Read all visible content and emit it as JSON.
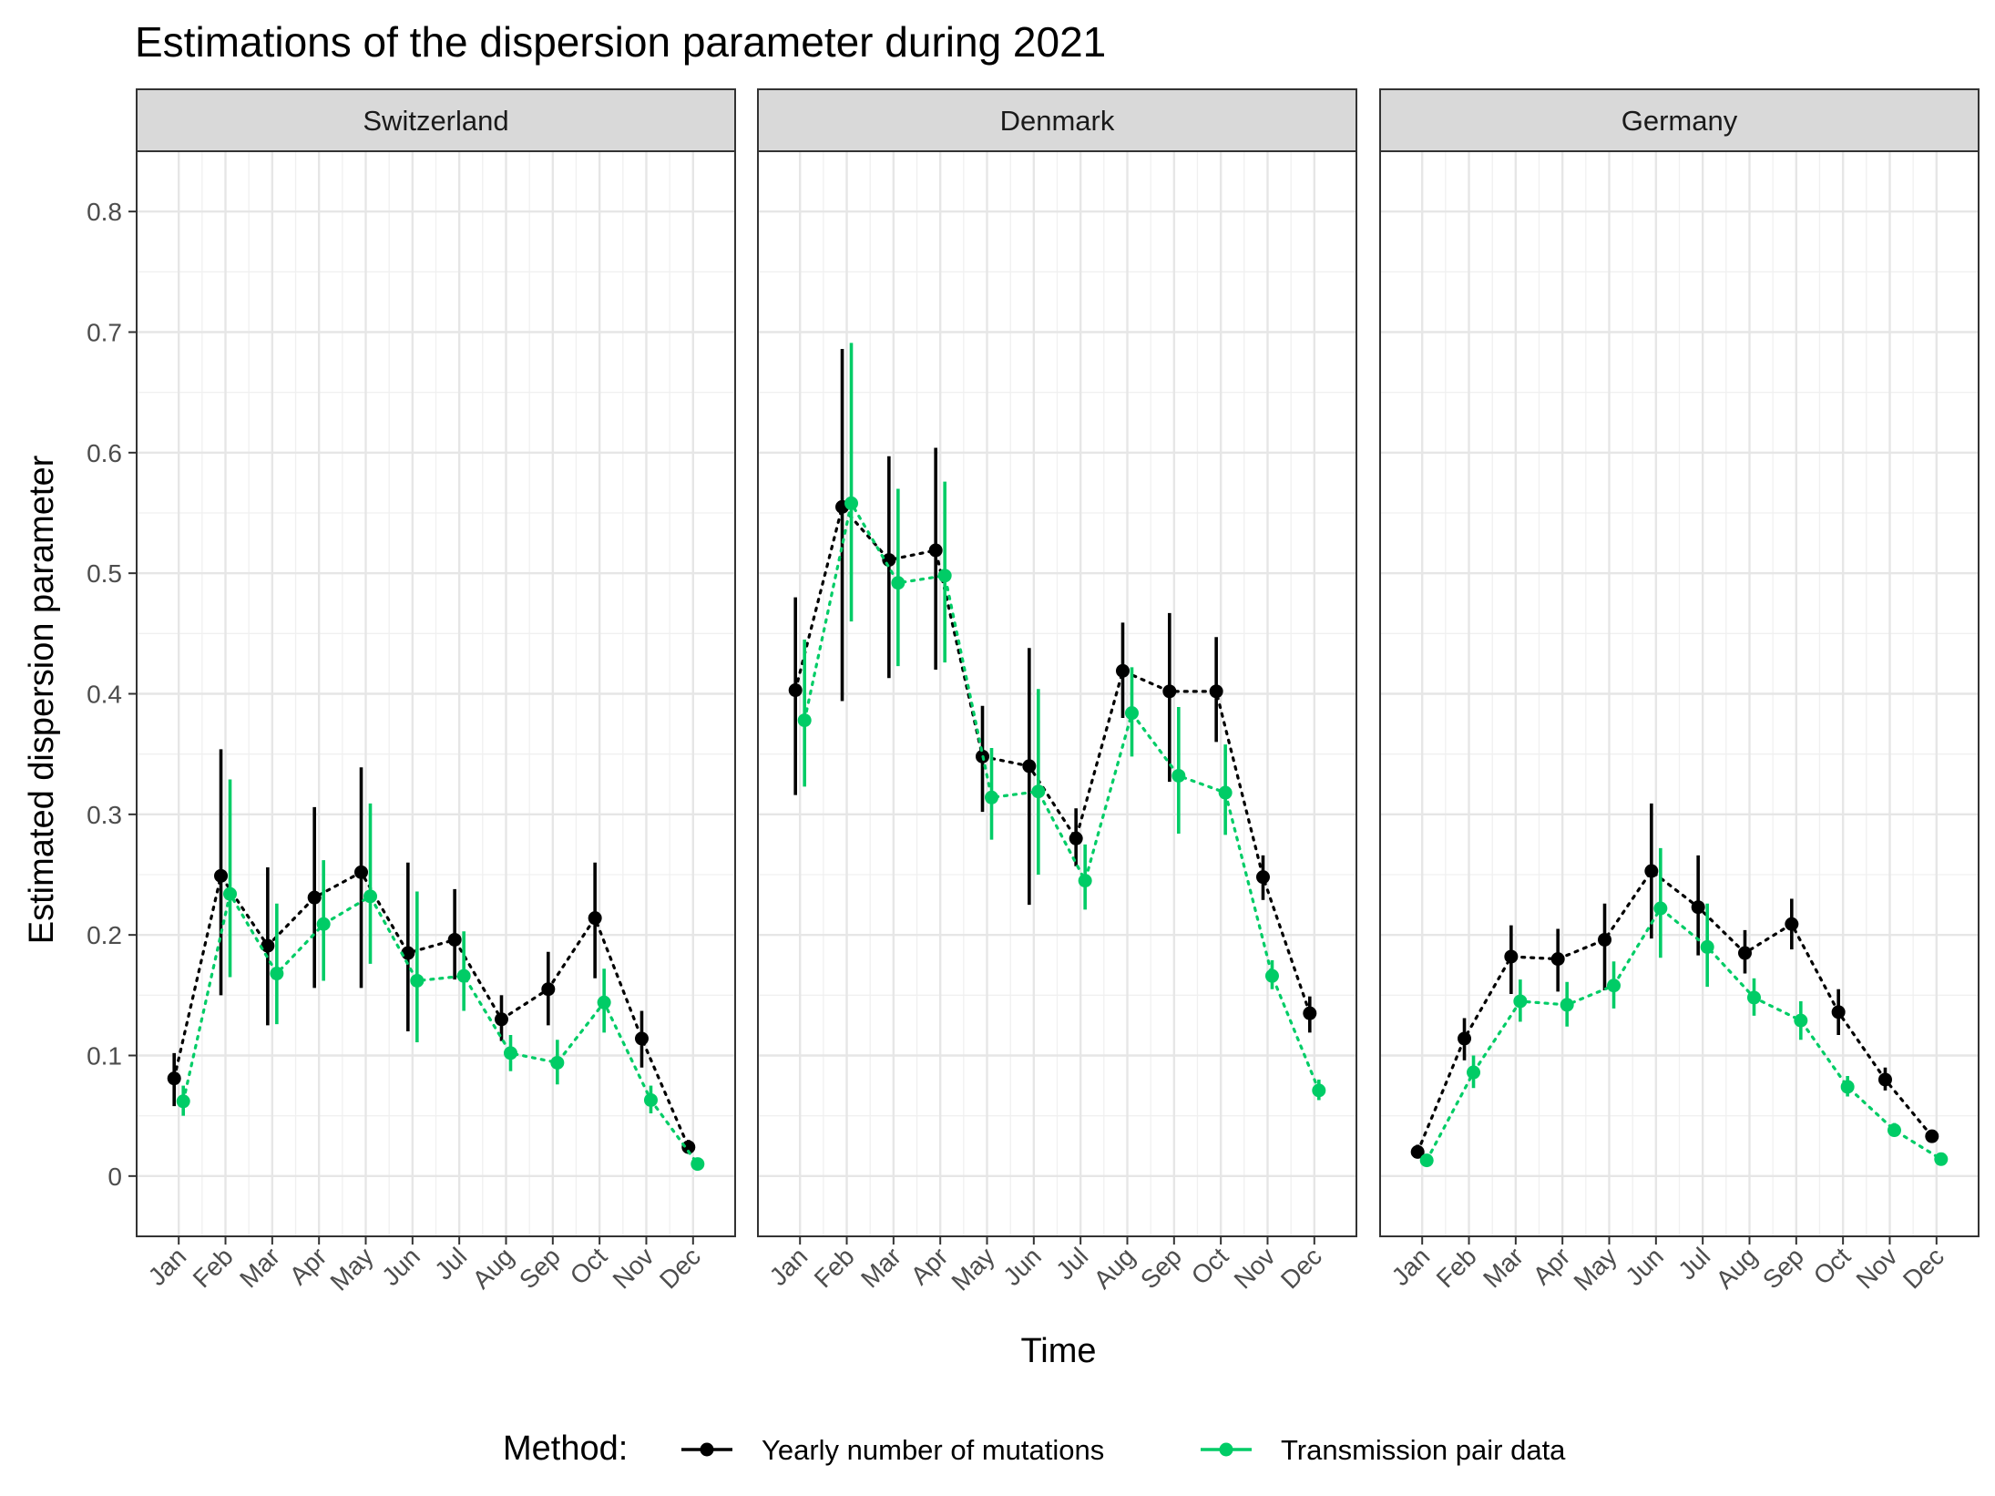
{
  "chart_data": {
    "type": "line",
    "title": "Estimations of the dispersion parameter during 2021",
    "xlabel": "Time",
    "ylabel": "Estimated dispersion parameter",
    "ylim": [
      -0.05,
      0.85
    ],
    "y_ticks": [
      "0",
      "0.1",
      "0.2",
      "0.3",
      "0.4",
      "0.5",
      "0.6",
      "0.7",
      "0.8"
    ],
    "categories": [
      "Jan",
      "Feb",
      "Mar",
      "Apr",
      "May",
      "Jun",
      "Jul",
      "Aug",
      "Sep",
      "Oct",
      "Nov",
      "Dec"
    ],
    "grid": true,
    "legend": {
      "title": "Method:",
      "position": "bottom",
      "entries": [
        {
          "name": "Yearly number of mutations",
          "color": "#000000"
        },
        {
          "name": "Transmission pair data",
          "color": "#00cc66"
        }
      ]
    },
    "panels": [
      {
        "name": "Switzerland",
        "series": [
          {
            "name": "Yearly number of mutations",
            "values": [
              0.081,
              0.249,
              0.191,
              0.231,
              0.252,
              0.185,
              0.196,
              0.13,
              0.155,
              0.214,
              0.114,
              0.024
            ],
            "lower": [
              0.058,
              0.15,
              0.125,
              0.156,
              0.156,
              0.12,
              0.163,
              0.112,
              0.125,
              0.164,
              0.09,
              0.019
            ],
            "upper": [
              0.102,
              0.354,
              0.256,
              0.306,
              0.339,
              0.26,
              0.238,
              0.15,
              0.186,
              0.26,
              0.137,
              0.03
            ]
          },
          {
            "name": "Transmission pair data",
            "values": [
              0.062,
              0.234,
              0.168,
              0.209,
              0.232,
              0.162,
              0.166,
              0.102,
              0.094,
              0.144,
              0.063,
              0.01
            ],
            "lower": [
              0.05,
              0.165,
              0.126,
              0.162,
              0.176,
              0.111,
              0.137,
              0.087,
              0.076,
              0.119,
              0.052,
              0.007
            ],
            "upper": [
              0.075,
              0.329,
              0.226,
              0.262,
              0.309,
              0.236,
              0.203,
              0.117,
              0.113,
              0.172,
              0.075,
              0.014
            ]
          }
        ]
      },
      {
        "name": "Denmark",
        "series": [
          {
            "name": "Yearly number of mutations",
            "values": [
              0.403,
              0.555,
              0.511,
              0.519,
              0.348,
              0.34,
              0.28,
              0.419,
              0.402,
              0.402,
              0.248,
              0.135
            ],
            "lower": [
              0.316,
              0.394,
              0.413,
              0.42,
              0.302,
              0.225,
              0.257,
              0.38,
              0.327,
              0.36,
              0.229,
              0.119
            ],
            "upper": [
              0.48,
              0.686,
              0.597,
              0.604,
              0.39,
              0.438,
              0.305,
              0.459,
              0.467,
              0.447,
              0.266,
              0.149
            ]
          },
          {
            "name": "Transmission pair data",
            "values": [
              0.378,
              0.558,
              0.492,
              0.498,
              0.314,
              0.319,
              0.245,
              0.384,
              0.332,
              0.318,
              0.166,
              0.071
            ],
            "lower": [
              0.323,
              0.46,
              0.423,
              0.426,
              0.279,
              0.25,
              0.221,
              0.348,
              0.284,
              0.283,
              0.155,
              0.063
            ],
            "upper": [
              0.445,
              0.691,
              0.57,
              0.576,
              0.355,
              0.404,
              0.275,
              0.422,
              0.389,
              0.358,
              0.179,
              0.08
            ]
          }
        ]
      },
      {
        "name": "Germany",
        "series": [
          {
            "name": "Yearly number of mutations",
            "values": [
              0.02,
              0.114,
              0.182,
              0.18,
              0.196,
              0.253,
              0.223,
              0.185,
              0.209,
              0.136,
              0.08,
              0.033
            ],
            "lower": [
              0.015,
              0.096,
              0.151,
              0.153,
              0.154,
              0.197,
              0.183,
              0.168,
              0.188,
              0.117,
              0.071,
              0.029
            ],
            "upper": [
              0.026,
              0.131,
              0.208,
              0.205,
              0.226,
              0.309,
              0.266,
              0.204,
              0.23,
              0.155,
              0.09,
              0.038
            ]
          },
          {
            "name": "Transmission pair data",
            "values": [
              0.013,
              0.086,
              0.145,
              0.142,
              0.158,
              0.222,
              0.19,
              0.148,
              0.129,
              0.074,
              0.038,
              0.014
            ],
            "lower": [
              0.01,
              0.073,
              0.128,
              0.124,
              0.139,
              0.181,
              0.157,
              0.133,
              0.113,
              0.066,
              0.033,
              0.011
            ],
            "upper": [
              0.017,
              0.1,
              0.163,
              0.161,
              0.178,
              0.272,
              0.226,
              0.164,
              0.145,
              0.083,
              0.044,
              0.017
            ]
          }
        ]
      }
    ]
  }
}
